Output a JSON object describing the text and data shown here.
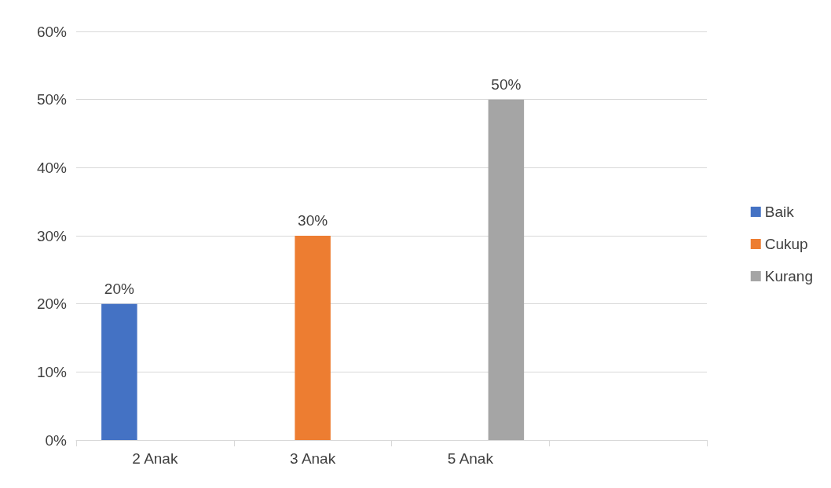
{
  "chart_data": {
    "type": "bar",
    "categories": [
      "2 Anak",
      "3 Anak",
      "5 Anak",
      null
    ],
    "series": [
      {
        "name": "Baik",
        "color": "#4472c4",
        "values": [
          20,
          null,
          null,
          null
        ],
        "value_labels": [
          "20%",
          null,
          null,
          null
        ]
      },
      {
        "name": "Cukup",
        "color": "#ed7d31",
        "values": [
          null,
          30,
          null,
          null
        ],
        "value_labels": [
          null,
          "30%",
          null,
          null
        ]
      },
      {
        "name": "Kurang",
        "color": "#a5a5a5",
        "values": [
          null,
          null,
          50,
          null
        ],
        "value_labels": [
          null,
          null,
          "50%",
          null
        ]
      }
    ],
    "ylim": [
      0,
      60
    ],
    "yticks": [
      {
        "value": 0,
        "label": "0%"
      },
      {
        "value": 10,
        "label": "10%"
      },
      {
        "value": 20,
        "label": "20%"
      },
      {
        "value": 30,
        "label": "30%"
      },
      {
        "value": 40,
        "label": "40%"
      },
      {
        "value": 50,
        "label": "50%"
      },
      {
        "value": 60,
        "label": "60%"
      }
    ],
    "grid": "y",
    "legend": "right"
  }
}
